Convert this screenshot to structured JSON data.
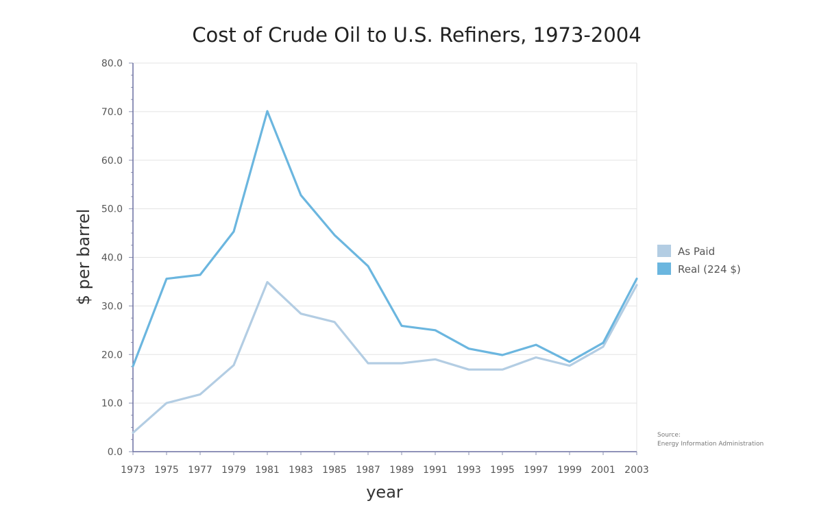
{
  "chart_data": {
    "type": "line",
    "title": "Cost of Crude Oil to U.S. Refiners, 1973-2004",
    "xlabel": "year",
    "ylabel": "$ per barrel",
    "x": [
      "1973",
      "1975",
      "1977",
      "1979",
      "1981",
      "1983",
      "1985",
      "1987",
      "1989",
      "1991",
      "1993",
      "1995",
      "1997",
      "1999",
      "2001",
      "2003"
    ],
    "ylim": [
      0,
      80
    ],
    "y_ticks": [
      "0.0",
      "10.0",
      "20.0",
      "30.0",
      "40.0",
      "50.0",
      "60.0",
      "70.0",
      "80.0"
    ],
    "grid": true,
    "legend_position": "right",
    "series": [
      {
        "name": "As Paid",
        "color": "#b3cde3",
        "values": [
          3.9,
          10.0,
          11.8,
          17.8,
          34.9,
          28.4,
          26.7,
          18.2,
          18.2,
          19.0,
          16.9,
          16.9,
          19.4,
          17.7,
          21.6,
          34.3
        ]
      },
      {
        "name": "Real (224 $)",
        "color": "#6bb6df",
        "values": [
          17.6,
          35.6,
          36.4,
          45.3,
          70.1,
          52.8,
          44.6,
          38.2,
          25.9,
          25.0,
          21.2,
          19.9,
          22.0,
          18.5,
          22.4,
          35.6
        ]
      }
    ],
    "source": {
      "label": "Source:",
      "text": "Energy Information Administration"
    }
  }
}
